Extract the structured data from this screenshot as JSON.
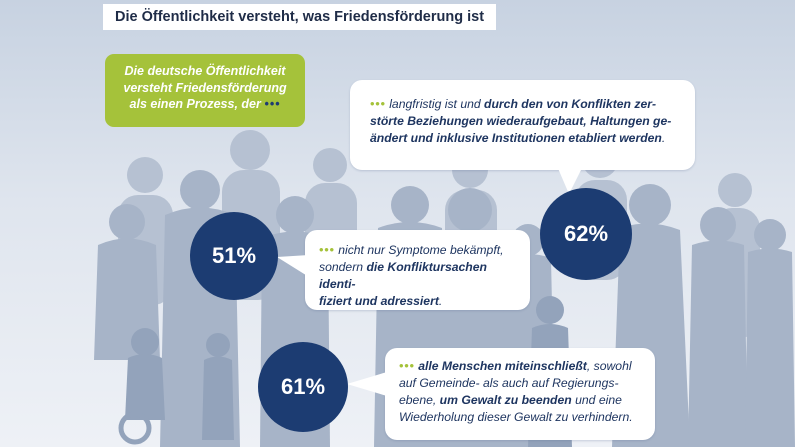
{
  "title": "Die Öffentlichkeit versteht, was Friedensförderung ist",
  "intro": {
    "line1": "Die deutsche Öffentlichkeit",
    "line2": "versteht Friedensförderung",
    "line3": "als einen Prozess, der",
    "dots": "•••"
  },
  "items": [
    {
      "percent": "62%",
      "dots": "•••",
      "l1_a": "langfristig ist und ",
      "l1_b": "durch den von Konflikten zer-",
      "l2": "störte Beziehungen wiederaufgebaut, Haltungen ge-",
      "l3": "ändert und inklusive Institutionen etabliert werden",
      "l3_end": "."
    },
    {
      "percent": "51%",
      "dots": "•••",
      "l1": "nicht nur Symptome bekämpft,",
      "l2_a": "sondern ",
      "l2_b": "die Konfliktursachen identi-",
      "l3": "fiziert und adressiert",
      "l3_end": "."
    },
    {
      "percent": "61%",
      "dots": "•••",
      "l1_a": "alle Menschen miteinschließt",
      "l1_b": ", sowohl",
      "l2": "auf Gemeinde- als auch auf Regierungs-",
      "l3_a": "ebene, ",
      "l3_b": "um Gewalt zu beenden",
      "l3_c": " und eine",
      "l4": "Wiederholung dieser Gewalt zu verhindern."
    }
  ],
  "colors": {
    "navy": "#1c3c72",
    "green": "#a5c23a",
    "silhouette": "#a9b6c9"
  }
}
